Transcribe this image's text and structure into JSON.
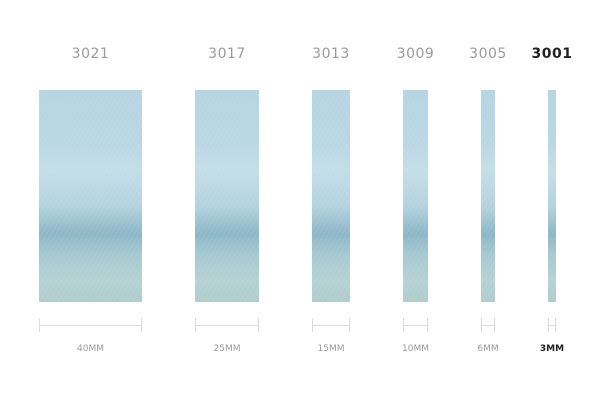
{
  "ribbons": [
    {
      "code": "3021",
      "width_label": "40MM"
    },
    {
      "code": "3017",
      "width_label": "25MM"
    },
    {
      "code": "3013",
      "width_label": "15MM"
    },
    {
      "code": "3009",
      "width_label": "10MM"
    },
    {
      "code": "3005",
      "width_label": "6MM"
    },
    {
      "code": "3001",
      "width_label": "3MM"
    }
  ],
  "selected": "3001",
  "colors": {
    "ribbon": "#a9cbd8",
    "label": "#9a9a9a",
    "selected_label": "#222222"
  }
}
